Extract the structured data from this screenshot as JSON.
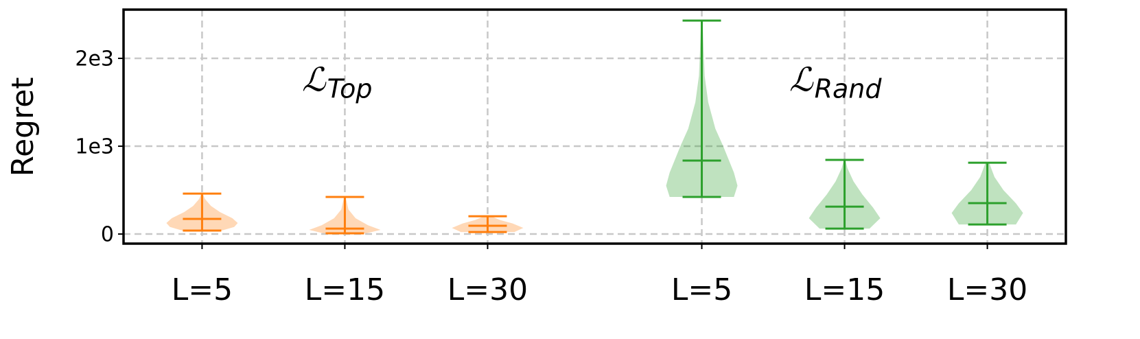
{
  "chart_data": {
    "type": "violin",
    "y_label": "Regret",
    "ylim": [
      -109,
      2555
    ],
    "yticks": [
      0,
      {
        "value": 1000,
        "label": "1e3"
      },
      {
        "value": 2000,
        "label": "2e3"
      }
    ],
    "xlim": [
      0.45,
      7.05
    ],
    "xticks": [
      {
        "value": 1,
        "label": "L=5"
      },
      {
        "value": 2,
        "label": "L=15"
      },
      {
        "value": 3,
        "label": "L=30"
      },
      {
        "value": 4.5,
        "label": "L=5"
      },
      {
        "value": 5.5,
        "label": "L=15"
      },
      {
        "value": 6.5,
        "label": "L=30"
      }
    ],
    "grid": true,
    "annotations": [
      {
        "main": "ℒ",
        "sub": "Top"
      },
      {
        "main": "ℒ",
        "sub": "Rand"
      }
    ],
    "violins": [
      {
        "x": 1,
        "color": "#ff7f0e",
        "min": 39,
        "median": 172,
        "max": 460,
        "kde_y": [
          39,
          80,
          125,
          180,
          250,
          320,
          400,
          460
        ],
        "kde_w": [
          0.55,
          0.9,
          1,
          0.85,
          0.5,
          0.25,
          0.08,
          0.02
        ]
      },
      {
        "x": 2,
        "color": "#ff7f0e",
        "min": 8,
        "median": 62,
        "max": 422,
        "kde_y": [
          8,
          47,
          100,
          180,
          280,
          422
        ],
        "kde_w": [
          0.6,
          1,
          0.65,
          0.3,
          0.1,
          0.02
        ]
      },
      {
        "x": 3,
        "color": "#ff7f0e",
        "min": 23,
        "median": 94,
        "max": 203,
        "kde_y": [
          23,
          70,
          120,
          160,
          203
        ],
        "kde_w": [
          0.75,
          1,
          0.7,
          0.35,
          0.1
        ]
      },
      {
        "x": 4.5,
        "color": "#2ca02c",
        "min": 422,
        "median": 836,
        "max": 2430,
        "kde_y": [
          422,
          550,
          700,
          850,
          1000,
          1200,
          1500,
          1800,
          2100,
          2430
        ],
        "kde_w": [
          0.9,
          1,
          0.9,
          0.75,
          0.6,
          0.38,
          0.18,
          0.08,
          0.05,
          0.02
        ]
      },
      {
        "x": 5.5,
        "color": "#2ca02c",
        "min": 62,
        "median": 312,
        "max": 844,
        "kde_y": [
          62,
          180,
          300,
          450,
          600,
          750,
          844
        ],
        "kde_w": [
          0.7,
          1,
          0.8,
          0.5,
          0.25,
          0.08,
          0.02
        ]
      },
      {
        "x": 6.5,
        "color": "#2ca02c",
        "min": 109,
        "median": 352,
        "max": 812,
        "kde_y": [
          109,
          240,
          350,
          500,
          650,
          812
        ],
        "kde_w": [
          0.8,
          1,
          0.8,
          0.45,
          0.2,
          0.05
        ]
      }
    ]
  }
}
